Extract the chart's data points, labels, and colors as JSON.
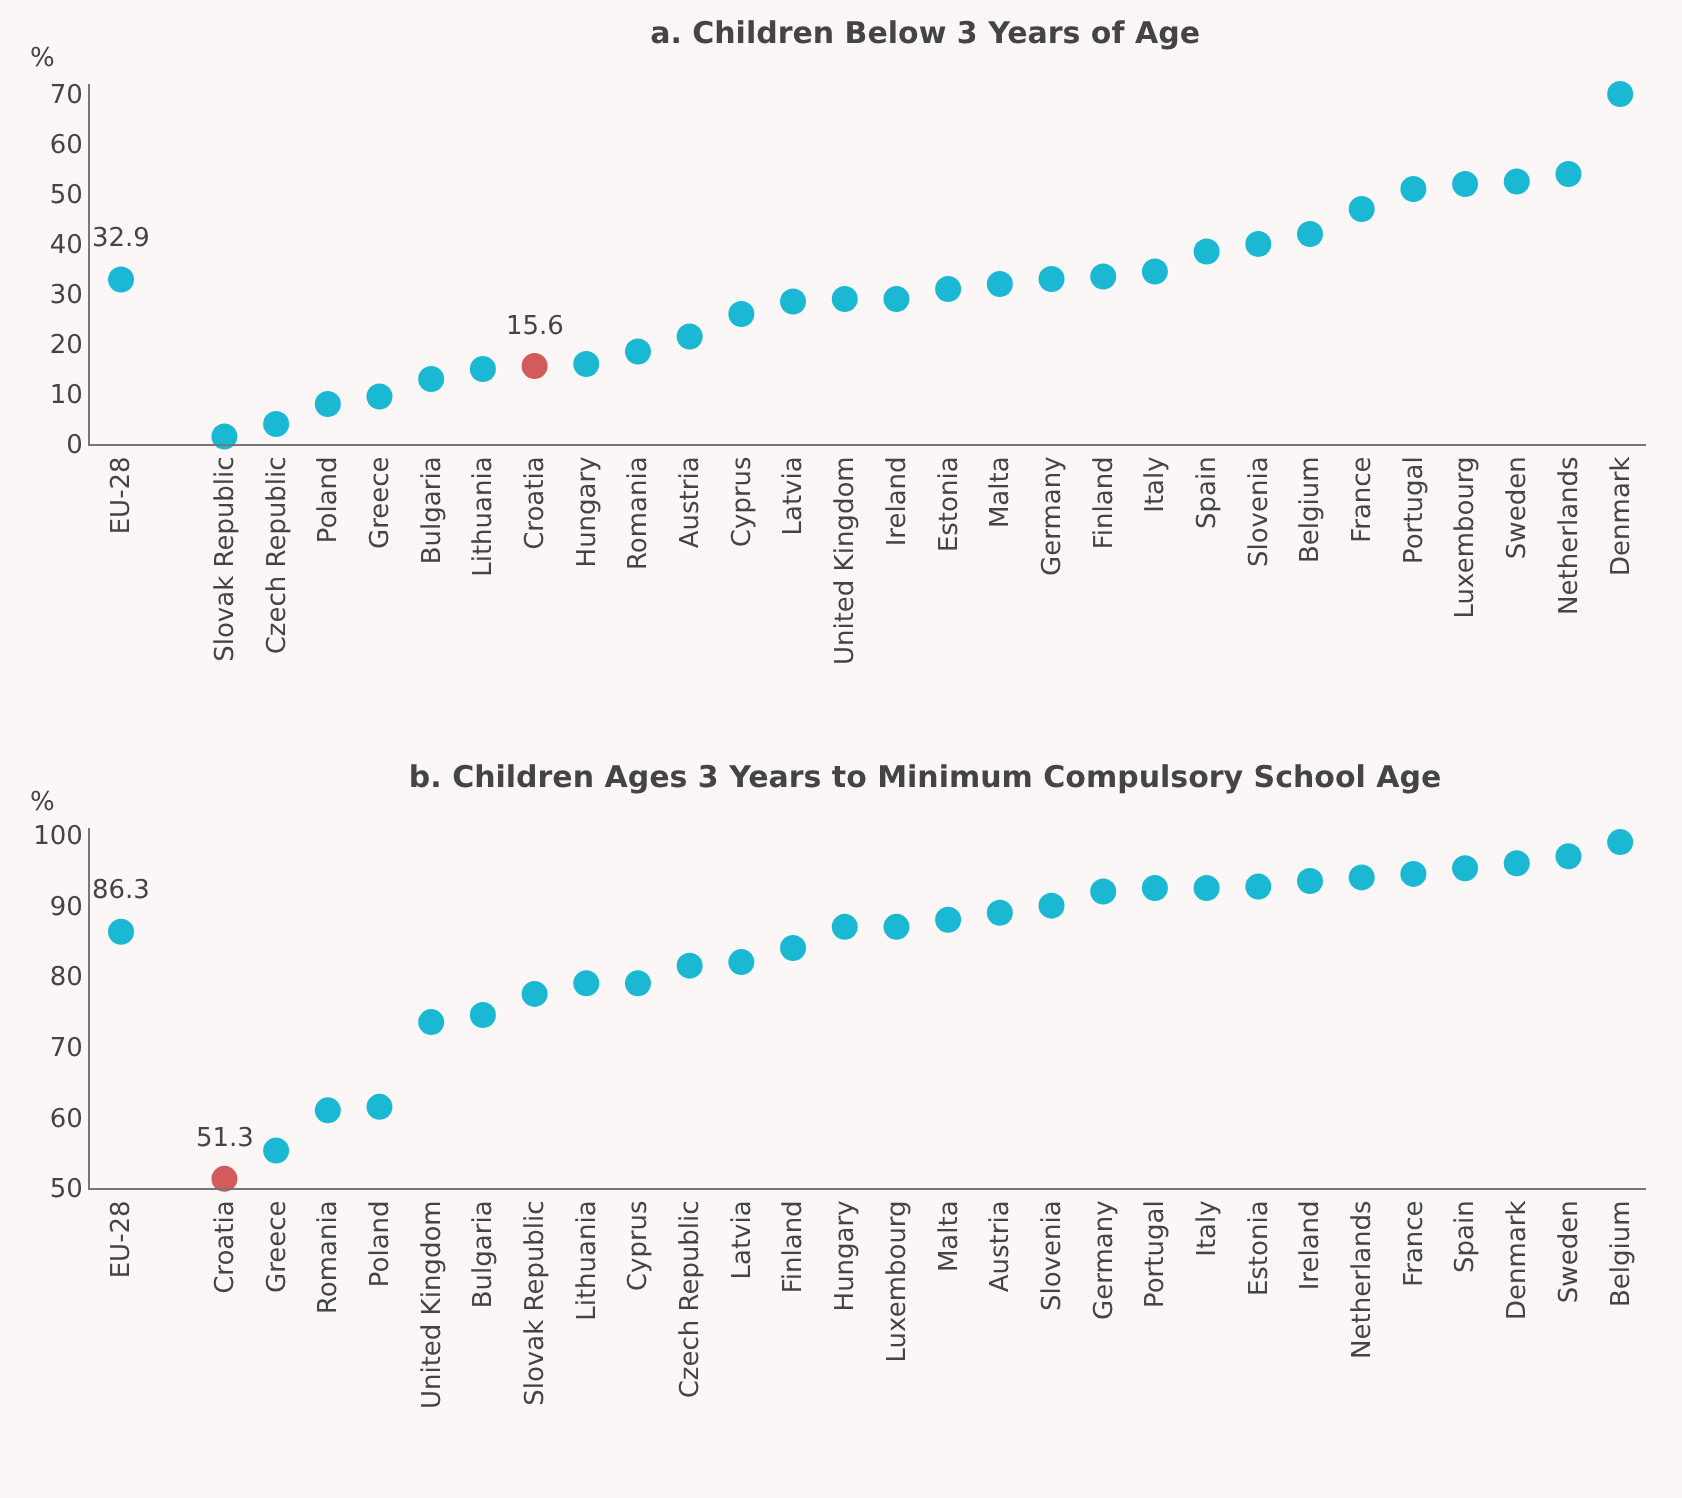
{
  "chart_data": [
    {
      "type": "scatter",
      "title": "a. Children Below 3 Years of Age",
      "ylabel": "%",
      "categories": [
        "EU-28",
        null,
        "Slovak Republic",
        "Czech Republic",
        "Poland",
        "Greece",
        "Bulgaria",
        "Lithuania",
        "Croatia",
        "Hungary",
        "Romania",
        "Austria",
        "Cyprus",
        "Latvia",
        "United Kingdom",
        "Ireland",
        "Estonia",
        "Malta",
        "Germany",
        "Finland",
        "Italy",
        "Spain",
        "Slovenia",
        "Belgium",
        "France",
        "Portugal",
        "Luxembourg",
        "Sweden",
        "Netherlands",
        "Denmark"
      ],
      "values": [
        32.9,
        null,
        1.5,
        4,
        8,
        9.5,
        13,
        15,
        15.6,
        16,
        18.5,
        21.5,
        26,
        28.5,
        29,
        29,
        31,
        32,
        33,
        33.5,
        34.5,
        38.5,
        40,
        42,
        47,
        51,
        52,
        52.5,
        54,
        70
      ],
      "colors": [
        "#1bb8d4",
        "#1bb8d4",
        "#1bb8d4",
        "#1bb8d4",
        "#1bb8d4",
        "#1bb8d4",
        "#1bb8d4",
        "#1bb8d4",
        "#d45b5b",
        "#1bb8d4",
        "#1bb8d4",
        "#1bb8d4",
        "#1bb8d4",
        "#1bb8d4",
        "#1bb8d4",
        "#1bb8d4",
        "#1bb8d4",
        "#1bb8d4",
        "#1bb8d4",
        "#1bb8d4",
        "#1bb8d4",
        "#1bb8d4",
        "#1bb8d4",
        "#1bb8d4",
        "#1bb8d4",
        "#1bb8d4",
        "#1bb8d4",
        "#1bb8d4",
        "#1bb8d4",
        "#1bb8d4"
      ],
      "annotations": [
        {
          "text": "32.9",
          "x": "EU-28",
          "y": 32.9
        },
        {
          "text": "15.6",
          "x": "Croatia",
          "y": 15.6
        }
      ],
      "ylim": [
        0,
        72
      ],
      "yticks": [
        0,
        10,
        20,
        30,
        40,
        50,
        60,
        70
      ],
      "grid": false,
      "marker": "circle"
    },
    {
      "type": "scatter",
      "title": "b. Children Ages 3 Years to Minimum Compulsory School Age",
      "ylabel": "%",
      "categories": [
        "EU-28",
        null,
        "Croatia",
        "Greece",
        "Romania",
        "Poland",
        "United Kingdom",
        "Bulgaria",
        "Slovak Republic",
        "Lithuania",
        "Cyprus",
        "Czech Republic",
        "Latvia",
        "Finland",
        "Hungary",
        "Luxembourg",
        "Malta",
        "Austria",
        "Slovenia",
        "Germany",
        "Portugal",
        "Italy",
        "Estonia",
        "Ireland",
        "Netherlands",
        "France",
        "Spain",
        "Denmark",
        "Sweden",
        "Belgium"
      ],
      "values": [
        86.3,
        null,
        51.3,
        55.3,
        61,
        61.5,
        73.5,
        74.5,
        77.5,
        79,
        79,
        81.5,
        82,
        84,
        87,
        87,
        88,
        89,
        90,
        92,
        92.5,
        92.5,
        92.7,
        93.5,
        94,
        94.5,
        95.3,
        96,
        97,
        99
      ],
      "colors": [
        "#1bb8d4",
        "#1bb8d4",
        "#d45b5b",
        "#1bb8d4",
        "#1bb8d4",
        "#1bb8d4",
        "#1bb8d4",
        "#1bb8d4",
        "#1bb8d4",
        "#1bb8d4",
        "#1bb8d4",
        "#1bb8d4",
        "#1bb8d4",
        "#1bb8d4",
        "#1bb8d4",
        "#1bb8d4",
        "#1bb8d4",
        "#1bb8d4",
        "#1bb8d4",
        "#1bb8d4",
        "#1bb8d4",
        "#1bb8d4",
        "#1bb8d4",
        "#1bb8d4",
        "#1bb8d4",
        "#1bb8d4",
        "#1bb8d4",
        "#1bb8d4",
        "#1bb8d4",
        "#1bb8d4"
      ],
      "annotations": [
        {
          "text": "86.3",
          "x": "EU-28",
          "y": 86.3
        },
        {
          "text": "51.3",
          "x": "Croatia",
          "y": 51.3
        }
      ],
      "ylim": [
        50,
        101
      ],
      "yticks": [
        50,
        60,
        70,
        80,
        90,
        100
      ],
      "grid": false,
      "marker": "circle"
    }
  ]
}
